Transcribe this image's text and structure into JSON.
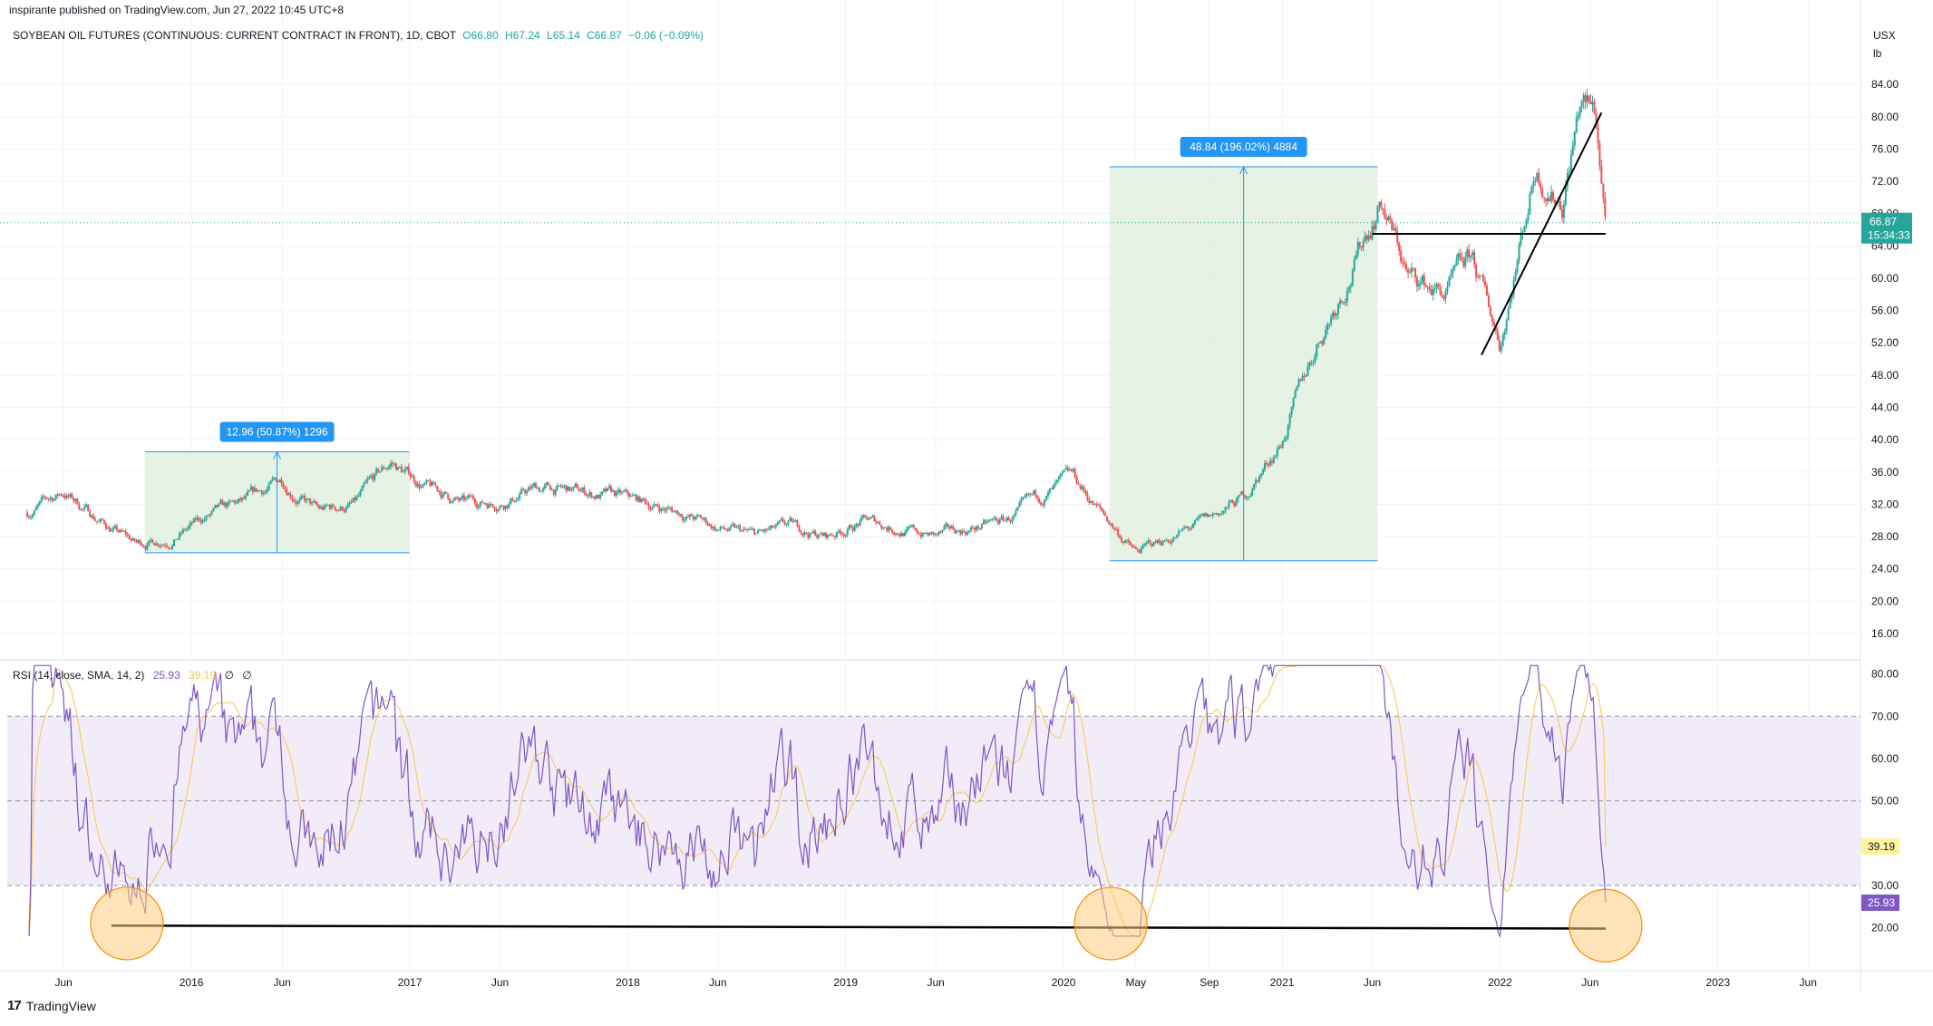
{
  "header": {
    "published": "inspirante published on TradingView.com, Jun 27, 2022 10:45 UTC+8"
  },
  "legend": {
    "symbol": "SOYBEAN OIL FUTURES (CONTINUOUS: CURRENT CONTRACT IN FRONT), 1D, CBOT",
    "open": "O66.80",
    "high": "H67.24",
    "low": "L65.14",
    "close": "C66.87",
    "change": "−0.06 (−0.09%)"
  },
  "price_axis": {
    "unit_line1": "USX",
    "unit_line2": "lb",
    "ticks": [
      "84.00",
      "80.00",
      "76.00",
      "72.00",
      "68.00",
      "64.00",
      "60.00",
      "56.00",
      "52.00",
      "48.00",
      "44.00",
      "40.00",
      "36.00",
      "32.00",
      "28.00",
      "24.00",
      "20.00",
      "16.00"
    ]
  },
  "last_price": {
    "value": "66.87",
    "countdown": "15:34:33"
  },
  "measures": [
    {
      "label": "12.96 (50.87%) 1296"
    },
    {
      "label": "48.84 (196.02%) 4884"
    }
  ],
  "rsi": {
    "legend": "RSI (14, close, SMA, 14, 2)",
    "rsi_value": "25.93",
    "sma_value": "39.19",
    "extra1": "∅",
    "extra2": "∅",
    "ticks": [
      "80.00",
      "70.00",
      "60.00",
      "50.00",
      "40.00",
      "30.00",
      "20.00"
    ]
  },
  "time_axis": {
    "labels": [
      "Jun",
      "2016",
      "Jun",
      "2017",
      "Jun",
      "2018",
      "Jun",
      "2019",
      "Jun",
      "2020",
      "May",
      "Sep",
      "2021",
      "Jun",
      "2022",
      "Jun",
      "2023",
      "Jun"
    ]
  },
  "footer": {
    "brand": "TradingView"
  },
  "colors": {
    "up": "#26a69a",
    "down": "#ef5350",
    "rsi": "#7e57c2",
    "rsi_sma": "#f9c74f",
    "measure_fill": "#e2f0de",
    "measure_line": "#2196f3",
    "rsi_band": "#ede7f6"
  },
  "chart_data": {
    "type": "line",
    "title": "SOYBEAN OIL FUTURES (CONTINUOUS: CURRENT CONTRACT IN FRONT), 1D, CBOT",
    "price_series": {
      "name": "Soybean Oil Futures",
      "x": [
        "2015-04-01",
        "2015-06-01",
        "2015-08-01",
        "2015-10-01",
        "2015-12-01",
        "2016-02-01",
        "2016-04-01",
        "2016-06-01",
        "2016-08-01",
        "2016-10-01",
        "2016-12-01",
        "2017-02-01",
        "2017-04-01",
        "2017-06-01",
        "2017-08-01",
        "2017-10-01",
        "2017-12-01",
        "2018-02-01",
        "2018-04-01",
        "2018-06-01",
        "2018-08-01",
        "2018-10-01",
        "2018-12-01",
        "2019-02-01",
        "2019-04-01",
        "2019-06-01",
        "2019-08-01",
        "2019-10-01",
        "2019-12-01",
        "2020-01-15",
        "2020-03-15",
        "2020-05-01",
        "2020-07-01",
        "2020-09-01",
        "2020-11-01",
        "2021-01-01",
        "2021-03-01",
        "2021-05-01",
        "2021-06-15",
        "2021-08-01",
        "2021-10-01",
        "2021-11-15",
        "2022-01-01",
        "2022-03-01",
        "2022-04-15",
        "2022-05-15",
        "2022-06-10",
        "2022-06-27"
      ],
      "y": [
        31,
        33.5,
        30,
        27,
        28,
        30.5,
        32,
        35,
        31,
        32,
        37,
        34,
        32,
        32.5,
        34,
        33.5,
        33,
        32,
        31,
        29,
        28,
        29,
        28,
        30,
        29,
        28,
        29,
        30,
        33,
        35,
        30,
        26,
        28,
        30,
        33,
        40,
        52,
        62,
        70,
        60,
        58,
        62,
        52,
        74,
        70,
        82,
        80,
        66.87
      ]
    },
    "rsi_series": {
      "name": "RSI (14, close, SMA, 14, 2)",
      "last": 25.93,
      "sma_last": 39.19
    },
    "ylim": [
      14,
      88
    ],
    "rsi_ylim": [
      15,
      82
    ],
    "grid": true
  }
}
